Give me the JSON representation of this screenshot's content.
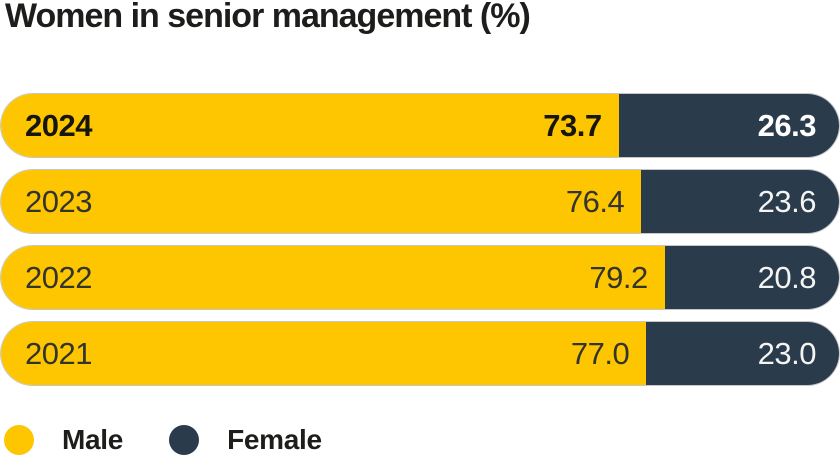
{
  "title": "Women in senior management (%)",
  "colors": {
    "male": "#fec601",
    "female": "#2a3b4c",
    "title_text": "#1d1d1b",
    "background": "#ffffff"
  },
  "legend": {
    "items": [
      {
        "name": "Male",
        "color": "#fec601"
      },
      {
        "name": "Female",
        "color": "#2a3b4c"
      }
    ]
  },
  "rows": [
    {
      "year": "2024",
      "male_value": "73.7",
      "female_value": "26.3"
    },
    {
      "year": "2023",
      "male_value": "76.4",
      "female_value": "23.6"
    },
    {
      "year": "2022",
      "male_value": "79.2",
      "female_value": "20.8"
    },
    {
      "year": "2021",
      "male_value": "77.0",
      "female_value": "23.0"
    }
  ],
  "chart_data": {
    "type": "bar",
    "orientation": "horizontal",
    "stacked": true,
    "title": "Women in senior management (%)",
    "categories": [
      "2024",
      "2023",
      "2022",
      "2021"
    ],
    "series": [
      {
        "name": "Male",
        "color": "#fec601",
        "values": [
          73.7,
          76.4,
          79.2,
          77.0
        ]
      },
      {
        "name": "Female",
        "color": "#2a3b4c",
        "values": [
          26.3,
          23.6,
          20.8,
          23.0
        ]
      }
    ],
    "xlim": [
      0,
      100
    ],
    "value_labels": true,
    "highlighted_category": "2024",
    "legend_position": "bottom-left",
    "grid": false
  }
}
